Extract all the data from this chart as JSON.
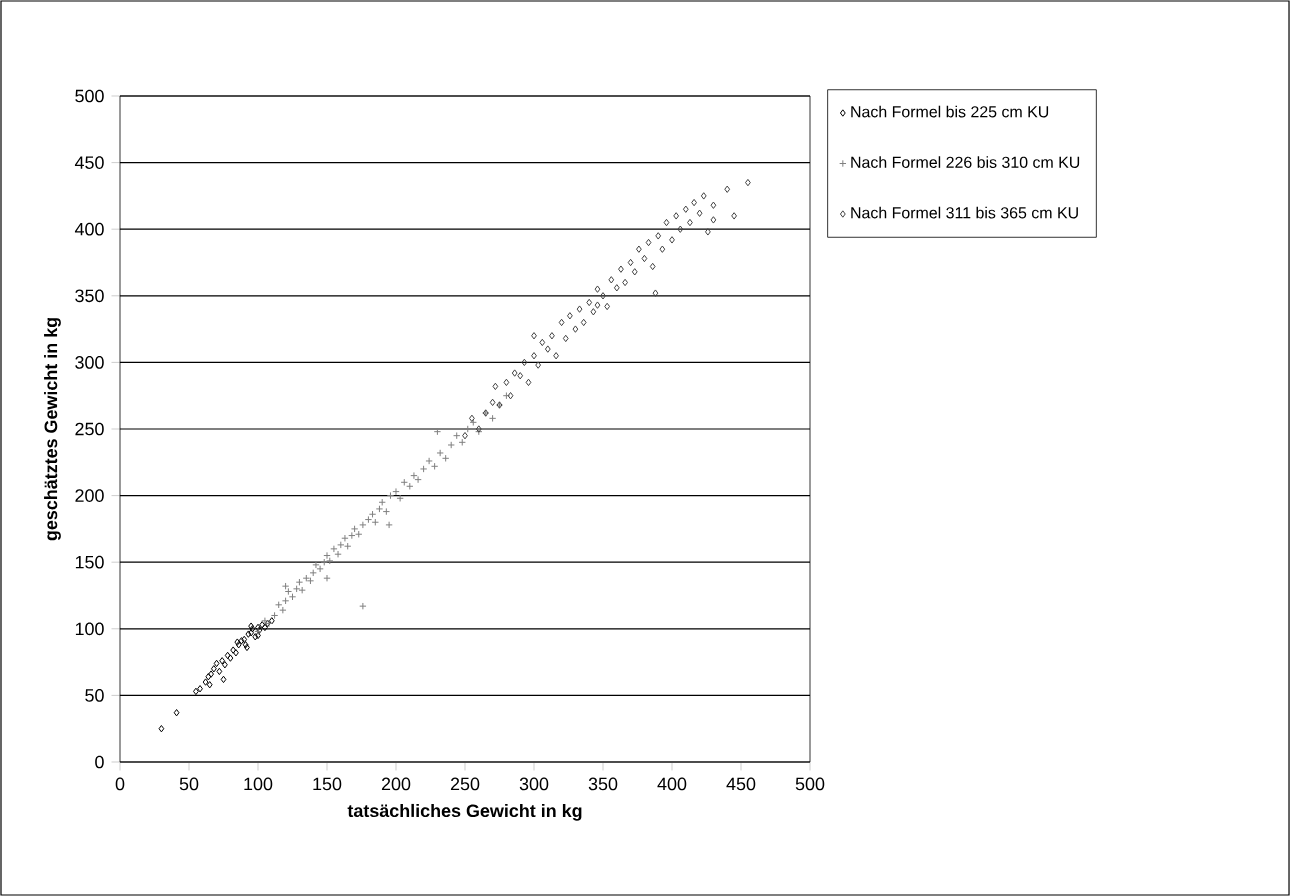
{
  "chart_data": {
    "type": "scatter",
    "xlabel": "tatsächliches Gewicht in kg",
    "ylabel": "geschätztes Gewicht in kg",
    "xlim": [
      0,
      500
    ],
    "ylim": [
      0,
      500
    ],
    "xticks": [
      0,
      50,
      100,
      150,
      200,
      250,
      300,
      350,
      400,
      450,
      500
    ],
    "yticks": [
      0,
      50,
      100,
      150,
      200,
      250,
      300,
      350,
      400,
      450,
      500
    ],
    "grid": "y",
    "legend": "right",
    "series": [
      {
        "name": "Nach Formel bis 225 cm KU",
        "color": "#000000",
        "marker": "diamond",
        "x": [
          30,
          41,
          55,
          58,
          62,
          64,
          66,
          68,
          70,
          72,
          74,
          76,
          78,
          80,
          82,
          84,
          86,
          88,
          90,
          91,
          93,
          95,
          96,
          98,
          100,
          101,
          103,
          105,
          107,
          110,
          75,
          65,
          85,
          95,
          92,
          100
        ],
        "values": [
          25,
          37,
          53,
          55,
          60,
          64,
          66,
          70,
          74,
          68,
          76,
          73,
          80,
          78,
          84,
          82,
          88,
          91,
          92,
          88,
          96,
          97,
          100,
          94,
          101,
          99,
          103,
          101,
          104,
          106,
          62,
          58,
          90,
          102,
          86,
          95
        ]
      },
      {
        "name": "Nach Formel 226 bis 310 cm KU",
        "color": "#808080",
        "marker": "cross",
        "x": [
          100,
          105,
          108,
          112,
          115,
          118,
          120,
          122,
          125,
          128,
          130,
          132,
          135,
          138,
          140,
          142,
          145,
          148,
          150,
          152,
          155,
          158,
          160,
          163,
          165,
          168,
          170,
          173,
          176,
          180,
          183,
          185,
          188,
          190,
          193,
          196,
          200,
          203,
          206,
          210,
          213,
          216,
          220,
          224,
          228,
          232,
          236,
          240,
          244,
          248,
          252,
          256,
          260,
          265,
          270,
          275,
          280,
          176,
          120,
          195,
          230,
          150
        ],
        "values": [
          98,
          106,
          104,
          110,
          118,
          114,
          121,
          128,
          124,
          130,
          135,
          129,
          138,
          136,
          142,
          148,
          145,
          150,
          155,
          151,
          160,
          156,
          163,
          168,
          162,
          170,
          175,
          171,
          178,
          182,
          186,
          180,
          190,
          195,
          188,
          200,
          203,
          198,
          210,
          207,
          215,
          212,
          220,
          226,
          222,
          232,
          228,
          238,
          245,
          240,
          250,
          255,
          248,
          262,
          258,
          268,
          275,
          117,
          132,
          178,
          248,
          138
        ]
      },
      {
        "name": "Nach Formel 311 bis 365 cm KU",
        "color": "#404040",
        "marker": "diamond",
        "x": [
          250,
          255,
          260,
          265,
          270,
          272,
          275,
          280,
          283,
          286,
          290,
          293,
          296,
          300,
          303,
          306,
          310,
          313,
          316,
          320,
          323,
          326,
          330,
          333,
          336,
          340,
          343,
          346,
          350,
          353,
          356,
          360,
          363,
          366,
          370,
          373,
          376,
          380,
          383,
          386,
          390,
          393,
          396,
          400,
          403,
          406,
          410,
          413,
          416,
          420,
          423,
          426,
          430,
          440,
          445,
          455,
          388,
          346,
          430,
          300
        ],
        "values": [
          245,
          258,
          250,
          262,
          270,
          282,
          268,
          285,
          275,
          292,
          290,
          300,
          285,
          305,
          298,
          315,
          310,
          320,
          305,
          330,
          318,
          335,
          325,
          340,
          330,
          345,
          338,
          355,
          350,
          342,
          362,
          356,
          370,
          360,
          375,
          368,
          385,
          378,
          390,
          372,
          395,
          385,
          405,
          392,
          410,
          400,
          415,
          405,
          420,
          412,
          425,
          398,
          418,
          430,
          410,
          435,
          352,
          343,
          407,
          320
        ]
      }
    ]
  }
}
